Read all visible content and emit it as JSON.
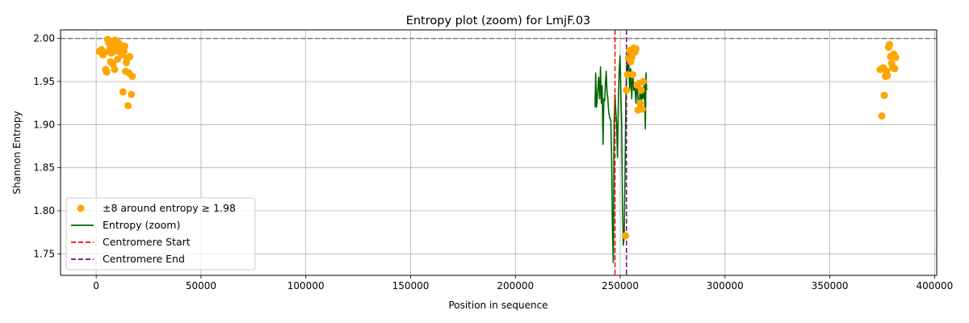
{
  "chart_data": {
    "type": "scatter",
    "title": "Entropy plot (zoom) for LmjF.03",
    "xlabel": "Position in sequence",
    "ylabel": "Shannon Entropy",
    "xlim": [
      -17000,
      401000
    ],
    "ylim": [
      1.725,
      2.01
    ],
    "xticks": [
      0,
      50000,
      100000,
      150000,
      200000,
      250000,
      300000,
      350000,
      400000
    ],
    "xtick_labels": [
      "0",
      "50000",
      "100000",
      "150000",
      "200000",
      "250000",
      "300000",
      "350000",
      "400000"
    ],
    "yticks": [
      1.75,
      1.8,
      1.85,
      1.9,
      1.95,
      2.0
    ],
    "ytick_labels": [
      "1.75",
      "1.80",
      "1.85",
      "1.90",
      "1.95",
      "2.00"
    ],
    "grid": true,
    "legend_position": "lower-left",
    "reference_line": {
      "y": 2.0,
      "color": "#808080",
      "style": "dashed"
    },
    "colors": {
      "points": "#ffa500",
      "entropy_line": "#006400",
      "centromere_start": "#ff0000",
      "centromere_end": "#800080"
    },
    "series": [
      {
        "name": "±8 around entropy ≥ 1.98",
        "kind": "scatter",
        "points": [
          [
            1500,
            1.985
          ],
          [
            2500,
            1.987
          ],
          [
            3200,
            1.981
          ],
          [
            4000,
            1.984
          ],
          [
            4500,
            1.964
          ],
          [
            5000,
            1.961
          ],
          [
            5500,
            1.999
          ],
          [
            6000,
            1.995
          ],
          [
            6500,
            1.988
          ],
          [
            6800,
            1.973
          ],
          [
            7200,
            1.983
          ],
          [
            7600,
            1.991
          ],
          [
            8000,
            1.97
          ],
          [
            8400,
            1.985
          ],
          [
            8800,
            1.964
          ],
          [
            9000,
            1.998
          ],
          [
            9400,
            1.993
          ],
          [
            9800,
            1.987
          ],
          [
            10200,
            1.976
          ],
          [
            10600,
            1.995
          ],
          [
            11000,
            1.985
          ],
          [
            11500,
            1.988
          ],
          [
            12000,
            1.992
          ],
          [
            12400,
            1.981
          ],
          [
            12800,
            1.938
          ],
          [
            13200,
            1.985
          ],
          [
            13600,
            1.991
          ],
          [
            14000,
            1.962
          ],
          [
            14400,
            1.972
          ],
          [
            14800,
            1.977
          ],
          [
            15200,
            1.922
          ],
          [
            15600,
            1.96
          ],
          [
            16000,
            1.979
          ],
          [
            16800,
            1.935
          ],
          [
            17200,
            1.956
          ],
          [
            252500,
            1.771
          ],
          [
            253000,
            1.94
          ],
          [
            253500,
            1.958
          ],
          [
            254000,
            1.977
          ],
          [
            254500,
            1.986
          ],
          [
            255000,
            1.973
          ],
          [
            255500,
            1.978
          ],
          [
            256000,
            1.958
          ],
          [
            256500,
            1.989
          ],
          [
            257000,
            1.984
          ],
          [
            257500,
            1.988
          ],
          [
            258000,
            1.946
          ],
          [
            258500,
            1.917
          ],
          [
            259000,
            1.948
          ],
          [
            259500,
            1.925
          ],
          [
            260000,
            1.94
          ],
          [
            260500,
            1.918
          ],
          [
            261000,
            1.95
          ],
          [
            374000,
            1.964
          ],
          [
            374800,
            1.91
          ],
          [
            375500,
            1.966
          ],
          [
            376000,
            1.934
          ],
          [
            376500,
            1.956
          ],
          [
            377000,
            1.962
          ],
          [
            377500,
            1.957
          ],
          [
            378000,
            1.99
          ],
          [
            378500,
            1.993
          ],
          [
            379000,
            1.979
          ],
          [
            379500,
            1.971
          ],
          [
            380000,
            1.966
          ],
          [
            380500,
            1.982
          ],
          [
            381000,
            1.965
          ],
          [
            381500,
            1.978
          ]
        ]
      },
      {
        "name": "Entropy (zoom)",
        "kind": "line",
        "points": [
          [
            238000,
            1.92
          ],
          [
            238300,
            1.96
          ],
          [
            238700,
            1.92
          ],
          [
            239200,
            1.935
          ],
          [
            239700,
            1.955
          ],
          [
            240200,
            1.93
          ],
          [
            240600,
            1.967
          ],
          [
            241000,
            1.925
          ],
          [
            241400,
            1.945
          ],
          [
            241800,
            1.877
          ],
          [
            242200,
            1.93
          ],
          [
            242600,
            1.928
          ],
          [
            243000,
            1.95
          ],
          [
            243300,
            1.962
          ],
          [
            243700,
            1.938
          ],
          [
            244100,
            1.93
          ],
          [
            244500,
            1.915
          ],
          [
            245000,
            1.908
          ],
          [
            245500,
            1.905
          ],
          [
            245900,
            1.862
          ],
          [
            246300,
            1.78
          ],
          [
            246700,
            1.74
          ],
          [
            247100,
            1.9
          ],
          [
            247500,
            1.935
          ],
          [
            247900,
            1.915
          ],
          [
            248300,
            1.9
          ],
          [
            248700,
            1.862
          ],
          [
            249100,
            1.925
          ],
          [
            249500,
            1.96
          ],
          [
            249900,
            1.98
          ],
          [
            250300,
            1.94
          ],
          [
            250700,
            1.9
          ],
          [
            251100,
            1.805
          ],
          [
            251500,
            1.76
          ],
          [
            251900,
            1.77
          ],
          [
            252300,
            1.84
          ],
          [
            252700,
            1.93
          ],
          [
            253100,
            1.972
          ],
          [
            253500,
            1.96
          ],
          [
            254000,
            1.985
          ],
          [
            254500,
            1.94
          ],
          [
            255000,
            1.965
          ],
          [
            255500,
            1.93
          ],
          [
            256000,
            1.96
          ],
          [
            256500,
            1.94
          ],
          [
            257000,
            1.945
          ],
          [
            257500,
            1.925
          ],
          [
            258000,
            1.95
          ],
          [
            258500,
            1.93
          ],
          [
            259000,
            1.915
          ],
          [
            259500,
            1.945
          ],
          [
            260000,
            1.92
          ],
          [
            260500,
            1.94
          ],
          [
            261000,
            1.93
          ],
          [
            261500,
            1.95
          ],
          [
            262000,
            1.895
          ],
          [
            262300,
            1.96
          ],
          [
            262600,
            1.94
          ]
        ]
      },
      {
        "name": "Centromere Start",
        "kind": "vline",
        "x": 247500
      },
      {
        "name": "Centromere End",
        "kind": "vline",
        "x": 253000
      }
    ]
  }
}
